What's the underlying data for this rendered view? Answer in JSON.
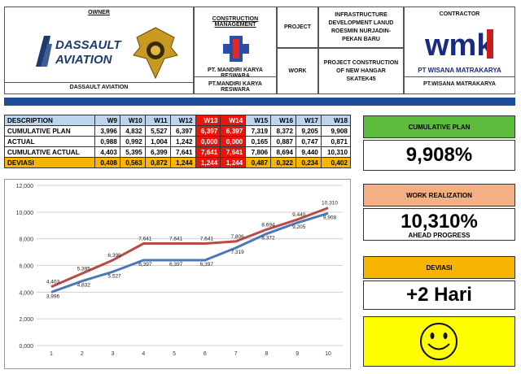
{
  "header": {
    "owner_title": "OWNER",
    "owner_name": "DASSAULT AVIATION",
    "owner_logo_line1": "DASSAULT",
    "owner_logo_line2": "AVIATION",
    "cm_title": "CONSTRUCTION MANAGEMENT",
    "cm_logo_text": "PT. MANDIRI KARYA RESWARA",
    "cm_name": "PT.MANDIRI KARYA RESWARA",
    "project_label": "PROJECT",
    "project_value": "INFRASTRUCTURE DEVELOPMENT LANUD ROESMIN NURJADIN-PEKAN BARU",
    "work_label": "WORK",
    "work_value": "PROJECT CONSTRUCTION OF NEW HANGAR SKATEK45",
    "contractor_title": "CONTRACTOR",
    "contractor_logo": "wmk",
    "contractor_logo_text": "PT WISANA MATRAKARYA",
    "contractor_name": "PT.WISANA MATRAKARYA"
  },
  "table": {
    "headers": [
      "DESCRIPTION",
      "W9",
      "W10",
      "W11",
      "W12",
      "W13",
      "W14",
      "W15",
      "W16",
      "W17",
      "W18"
    ],
    "rows": [
      {
        "label": "CUMULATIVE PLAN",
        "values": [
          "3,996",
          "4,832",
          "5,527",
          "6,397",
          "6,397",
          "6,397",
          "7,319",
          "8,372",
          "9,205",
          "9,908"
        ]
      },
      {
        "label": "ACTUAL",
        "values": [
          "0,988",
          "0,992",
          "1,004",
          "1,242",
          "0,000",
          "0,000",
          "0,165",
          "0,887",
          "0,747",
          "0,871"
        ]
      },
      {
        "label": "CUMULATIVE ACTUAL",
        "values": [
          "4,403",
          "5,395",
          "6,399",
          "7,641",
          "7,641",
          "7,641",
          "7,806",
          "8,694",
          "9,440",
          "10,310"
        ]
      },
      {
        "label": "DEVIASI",
        "values": [
          "0,408",
          "0,563",
          "0,872",
          "1,244",
          "1,244",
          "1,244",
          "0,487",
          "0,322",
          "0,234",
          "0,402"
        ]
      }
    ]
  },
  "panels": {
    "plan_label": "CUMULATIVE PLAN",
    "plan_value": "9,908%",
    "real_label": "WORK REALIZATION",
    "real_value": "10,310%",
    "real_status": "AHEAD PROGRESS",
    "dev_label": "DEVIASI",
    "dev_value": "+2 Hari",
    "smiley_icon": "smiley-face-icon"
  },
  "colors": {
    "plan_line": "#4a78b8",
    "actual_line": "#b84a48",
    "green_header": "#5cbc3c",
    "salmon_header": "#f4b084",
    "orange_header": "#f7b400",
    "smiley_bg": "#ffff00",
    "red_cell": "#e8160c"
  },
  "chart_data": {
    "type": "line",
    "x": [
      1,
      2,
      3,
      4,
      5,
      6,
      7,
      8,
      9,
      10
    ],
    "ylim": [
      0,
      12
    ],
    "yticks": [
      "0,000",
      "2,000",
      "4,000",
      "6,000",
      "8,000",
      "10,000",
      "12,000"
    ],
    "series": [
      {
        "values": [
          3.996,
          4.832,
          5.527,
          6.397,
          6.397,
          6.397,
          7.319,
          8.372,
          9.205,
          9.908
        ],
        "labels": [
          "3,996",
          "4,832",
          "5,527",
          "6,397",
          "6,397",
          "6,397",
          "7,319",
          "8,372",
          "9,205",
          "9,908"
        ]
      },
      {
        "values": [
          4.403,
          5.395,
          6.399,
          7.641,
          7.641,
          7.641,
          7.806,
          8.694,
          9.44,
          10.31
        ],
        "labels": [
          "4,403",
          "5,395",
          "6,399",
          "7,641",
          "7,641",
          "7,641",
          "7,806",
          "8,694",
          "9,440",
          "10,310"
        ]
      }
    ],
    "grid": true
  }
}
